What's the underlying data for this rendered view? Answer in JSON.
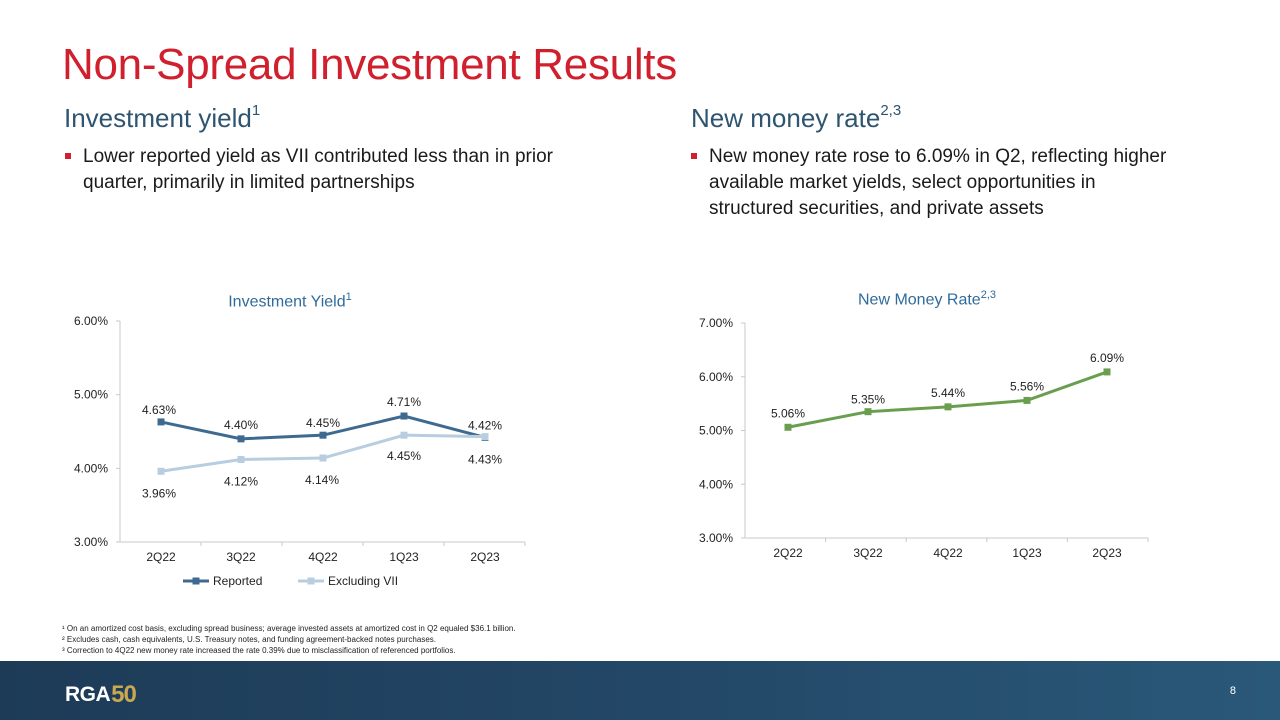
{
  "slide": {
    "title": "Non-Spread Investment Results",
    "page_number": "8"
  },
  "left": {
    "heading": "Investment yield",
    "heading_sup": "1",
    "bullet": "Lower reported yield as VII contributed less than in prior quarter, primarily in limited partnerships"
  },
  "right": {
    "heading": "New money rate",
    "heading_sup": "2,3",
    "bullet": "New money rate rose to 6.09% in Q2, reflecting higher available market yields, select opportunities in structured securities, and private assets"
  },
  "footnotes": [
    "¹ On an amortized cost basis, excluding spread business; average invested assets at amortized cost in Q2 equaled $36.1 billion.",
    "² Excludes cash, cash equivalents, U.S. Treasury notes, and funding agreement-backed notes purchases.",
    "³ Correction to 4Q22 new money rate increased the rate 0.39% due to misclassification of referenced portfolios."
  ],
  "logo": {
    "text": "RGA",
    "anniversary": "50"
  },
  "colors": {
    "reported": "#3f6a90",
    "excluding_vii": "#b8cde0",
    "new_money": "#6a9e4f",
    "title_red": "#d0202e",
    "heading_blue": "#2e5470"
  },
  "chart_data": [
    {
      "type": "line",
      "title": "Investment Yield",
      "title_sup": "1",
      "categories": [
        "2Q22",
        "3Q22",
        "4Q22",
        "1Q23",
        "2Q23"
      ],
      "series": [
        {
          "name": "Reported",
          "values": [
            4.63,
            4.4,
            4.45,
            4.71,
            4.42
          ],
          "labels": [
            "4.63%",
            "4.40%",
            "4.45%",
            "4.71%",
            "4.42%"
          ]
        },
        {
          "name": "Excluding VII",
          "values": [
            3.96,
            4.12,
            4.14,
            4.45,
            4.43
          ],
          "labels": [
            "3.96%",
            "4.12%",
            "4.14%",
            "4.45%",
            "4.43%"
          ]
        }
      ],
      "yticks": [
        "3.00%",
        "4.00%",
        "5.00%",
        "6.00%"
      ],
      "ylim": [
        3.0,
        6.0
      ],
      "legend": "bottom"
    },
    {
      "type": "line",
      "title": "New Money Rate",
      "title_sup": "2,3",
      "categories": [
        "2Q22",
        "3Q22",
        "4Q22",
        "1Q23",
        "2Q23"
      ],
      "series": [
        {
          "name": "New Money Rate",
          "values": [
            5.06,
            5.35,
            5.44,
            5.56,
            6.09
          ],
          "labels": [
            "5.06%",
            "5.35%",
            "5.44%",
            "5.56%",
            "6.09%"
          ]
        }
      ],
      "yticks": [
        "3.00%",
        "4.00%",
        "5.00%",
        "6.00%",
        "7.00%"
      ],
      "ylim": [
        3.0,
        7.0
      ],
      "legend": "none"
    }
  ]
}
